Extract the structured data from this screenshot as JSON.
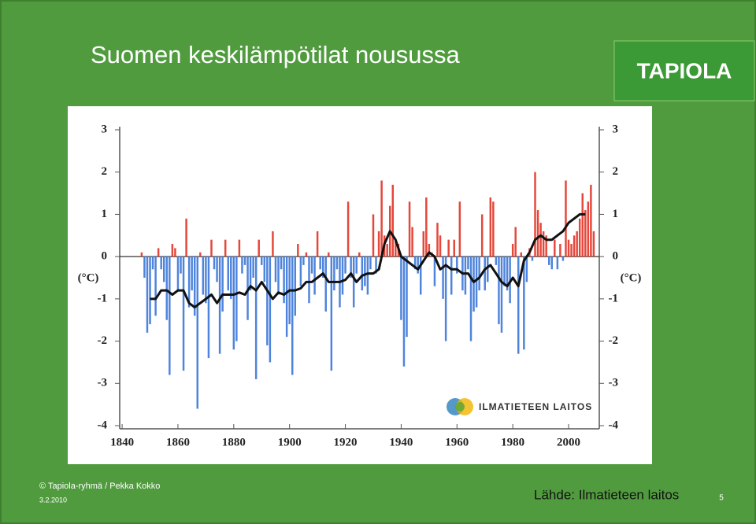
{
  "slide": {
    "title": "Suomen keskilämpötilat nousussa",
    "logo": "TAPIOLA",
    "copyright": "© Tapiola-ryhmä / Pekka Kokko",
    "date": "3.2.2010",
    "source": "Lähde: Ilmatieteen laitos",
    "page_number": "5"
  },
  "chart_data": {
    "type": "bar",
    "y_label": "(°C)",
    "y2_label": "(°C)",
    "source_logo": "ILMATIETEEN LAITOS",
    "xlim": [
      1838,
      2011
    ],
    "xticks": [
      1840,
      1860,
      1880,
      1900,
      1920,
      1940,
      1960,
      1980,
      2000
    ],
    "ylim": [
      -4,
      3
    ],
    "yticks": [
      3,
      2,
      1,
      0,
      -1,
      -2,
      -3,
      -4
    ],
    "series": [
      {
        "type": "bar",
        "positive_color": "#e5473b",
        "negative_color": "#4f84dc",
        "x": [
          1847,
          1848,
          1849,
          1850,
          1851,
          1852,
          1853,
          1854,
          1855,
          1856,
          1857,
          1858,
          1859,
          1860,
          1861,
          1862,
          1863,
          1864,
          1865,
          1866,
          1867,
          1868,
          1869,
          1870,
          1871,
          1872,
          1873,
          1874,
          1875,
          1876,
          1877,
          1878,
          1879,
          1880,
          1881,
          1882,
          1883,
          1884,
          1885,
          1886,
          1887,
          1888,
          1889,
          1890,
          1891,
          1892,
          1893,
          1894,
          1895,
          1896,
          1897,
          1898,
          1899,
          1900,
          1901,
          1902,
          1903,
          1904,
          1905,
          1906,
          1907,
          1908,
          1909,
          1910,
          1911,
          1912,
          1913,
          1914,
          1915,
          1916,
          1917,
          1918,
          1919,
          1920,
          1921,
          1922,
          1923,
          1924,
          1925,
          1926,
          1927,
          1928,
          1929,
          1930,
          1931,
          1932,
          1933,
          1934,
          1935,
          1936,
          1937,
          1938,
          1939,
          1940,
          1941,
          1942,
          1943,
          1944,
          1945,
          1946,
          1947,
          1948,
          1949,
          1950,
          1951,
          1952,
          1953,
          1954,
          1955,
          1956,
          1957,
          1958,
          1959,
          1960,
          1961,
          1962,
          1963,
          1964,
          1965,
          1966,
          1967,
          1968,
          1969,
          1970,
          1971,
          1972,
          1973,
          1974,
          1975,
          1976,
          1977,
          1978,
          1979,
          1980,
          1981,
          1982,
          1983,
          1984,
          1985,
          1986,
          1987,
          1988,
          1989,
          1990,
          1991,
          1992,
          1993,
          1994,
          1995,
          1996,
          1997,
          1998,
          1999,
          2000,
          2001,
          2002,
          2003,
          2004,
          2005,
          2006,
          2007,
          2008,
          2009
        ],
        "values": [
          0.1,
          -0.5,
          -1.8,
          -1.6,
          -0.3,
          -1.4,
          0.2,
          -0.3,
          -0.6,
          -1.5,
          -2.8,
          0.3,
          0.2,
          -0.8,
          -0.4,
          -2.7,
          0.9,
          -1.2,
          -0.8,
          -1.4,
          -3.6,
          0.1,
          -0.9,
          -1.1,
          -2.4,
          0.4,
          -0.3,
          -0.6,
          -2.3,
          -1.3,
          0.4,
          -0.8,
          -1.0,
          -2.2,
          -2.0,
          0.4,
          -0.4,
          -0.2,
          -1.5,
          -0.8,
          -0.5,
          -2.9,
          0.4,
          -0.2,
          -0.6,
          -2.1,
          -2.5,
          0.6,
          -0.6,
          -0.9,
          -0.3,
          -1.1,
          -1.9,
          -1.6,
          -2.8,
          -1.4,
          0.3,
          -0.7,
          -0.2,
          0.1,
          -1.1,
          -0.4,
          -0.9,
          0.6,
          -0.3,
          -0.5,
          -1.3,
          0.1,
          -2.7,
          -0.8,
          -0.3,
          -1.2,
          -0.9,
          -0.4,
          1.3,
          -0.5,
          -1.2,
          -0.4,
          0.1,
          -0.8,
          -0.7,
          -0.9,
          -0.3,
          1.0,
          -0.4,
          0.6,
          1.8,
          0.5,
          0.3,
          1.2,
          1.7,
          0.4,
          0.3,
          -1.5,
          -2.6,
          -1.9,
          1.3,
          0.7,
          -0.3,
          -0.4,
          -0.9,
          0.6,
          1.4,
          0.3,
          0.1,
          -0.7,
          0.8,
          0.5,
          -1.0,
          -2.0,
          0.4,
          -0.9,
          0.4,
          -0.4,
          1.3,
          -0.8,
          -0.9,
          -0.3,
          -2.0,
          -1.3,
          -1.2,
          -0.8,
          1.0,
          -0.8,
          -0.6,
          1.4,
          1.3,
          -0.2,
          -1.6,
          -1.8,
          -0.7,
          -0.8,
          -1.1,
          0.3,
          0.7,
          -2.3,
          0.1,
          -2.2,
          -0.6,
          0.2,
          -0.1,
          2.0,
          1.1,
          0.8,
          0.6,
          0.5,
          -0.2,
          -0.3,
          0.4,
          -0.3,
          0.3,
          -0.1,
          1.8,
          0.4,
          0.3,
          0.5,
          0.6,
          0.9,
          1.5,
          1.1,
          1.3,
          1.7,
          0.6
        ]
      },
      {
        "type": "line",
        "color": "#111111",
        "x": [
          1850,
          1852,
          1854,
          1856,
          1858,
          1860,
          1862,
          1864,
          1866,
          1868,
          1870,
          1872,
          1874,
          1876,
          1878,
          1880,
          1882,
          1884,
          1886,
          1888,
          1890,
          1892,
          1894,
          1896,
          1898,
          1900,
          1902,
          1904,
          1906,
          1908,
          1910,
          1912,
          1914,
          1916,
          1918,
          1920,
          1922,
          1924,
          1926,
          1928,
          1930,
          1932,
          1934,
          1936,
          1938,
          1940,
          1942,
          1944,
          1946,
          1948,
          1950,
          1952,
          1954,
          1956,
          1958,
          1960,
          1962,
          1964,
          1966,
          1968,
          1970,
          1972,
          1974,
          1976,
          1978,
          1980,
          1982,
          1984,
          1986,
          1988,
          1990,
          1992,
          1994,
          1996,
          1998,
          2000,
          2002,
          2004,
          2006
        ],
        "values": [
          -1.0,
          -1.0,
          -0.8,
          -0.8,
          -0.9,
          -0.8,
          -0.8,
          -1.1,
          -1.2,
          -1.1,
          -1.0,
          -0.9,
          -1.1,
          -0.9,
          -0.9,
          -0.9,
          -0.85,
          -0.9,
          -0.7,
          -0.8,
          -0.6,
          -0.8,
          -1.0,
          -0.85,
          -0.9,
          -0.8,
          -0.8,
          -0.75,
          -0.6,
          -0.6,
          -0.5,
          -0.4,
          -0.6,
          -0.6,
          -0.6,
          -0.55,
          -0.4,
          -0.6,
          -0.45,
          -0.4,
          -0.4,
          -0.3,
          0.3,
          0.6,
          0.4,
          0.0,
          -0.1,
          -0.2,
          -0.3,
          -0.1,
          0.1,
          0.0,
          -0.3,
          -0.2,
          -0.3,
          -0.3,
          -0.4,
          -0.4,
          -0.6,
          -0.5,
          -0.3,
          -0.2,
          -0.4,
          -0.6,
          -0.7,
          -0.5,
          -0.7,
          -0.1,
          0.1,
          0.4,
          0.5,
          0.4,
          0.4,
          0.5,
          0.6,
          0.8,
          0.9,
          1.0,
          1.0
        ]
      }
    ]
  }
}
